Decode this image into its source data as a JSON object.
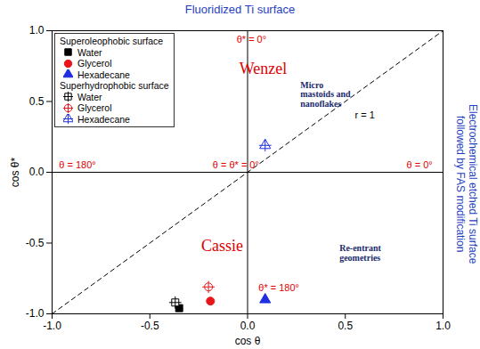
{
  "chart_data": {
    "type": "scatter",
    "title": "Fluoridized Ti surface",
    "side_title": "Electrochemical etched Ti surface\nfollowed by FAS modification",
    "x_label": "cos θ",
    "y_label": "cos θ*",
    "xlim": [
      -1,
      1
    ],
    "ylim": [
      -1,
      1
    ],
    "xticks": [
      {
        "value": -1,
        "label": "-1.0"
      },
      {
        "value": -0.5,
        "label": "-0.5"
      },
      {
        "value": 0,
        "label": "0.0"
      },
      {
        "value": 0.5,
        "label": "0.5"
      },
      {
        "value": 1,
        "label": "1.0"
      }
    ],
    "yticks": [
      {
        "value": -1,
        "label": "-1.0"
      },
      {
        "value": -0.5,
        "label": "-0.5"
      },
      {
        "value": 0,
        "label": "0.0"
      },
      {
        "value": 0.5,
        "label": "0.5"
      },
      {
        "value": 1,
        "label": "1.0"
      }
    ],
    "legend": "top-left",
    "series": [
      {
        "name": "Water",
        "group": "Superoleophobic surface",
        "color": "#000000",
        "marker": "square",
        "x": [
          -0.35
        ],
        "y": [
          -0.96
        ]
      },
      {
        "name": "Glycerol",
        "group": "Superoleophobic surface",
        "color": "#e8161b",
        "marker": "circle",
        "x": [
          -0.19
        ],
        "y": [
          -0.91
        ]
      },
      {
        "name": "Hexadecane",
        "group": "Superoleophobic surface",
        "color": "#1f2ee0",
        "marker": "triangle",
        "x": [
          0.09
        ],
        "y": [
          -0.9
        ]
      },
      {
        "name": "Water",
        "group": "Superhydrophobic surface",
        "color": "#000000",
        "marker": "crossed square",
        "x": [
          -0.37
        ],
        "y": [
          -0.92
        ]
      },
      {
        "name": "Glycerol",
        "group": "Superhydrophobic surface",
        "color": "#e8161b",
        "marker": "crossed circle",
        "x": [
          -0.2
        ],
        "y": [
          -0.81
        ]
      },
      {
        "name": "Hexadecane",
        "group": "Superhydrophobic surface",
        "color": "#1f2ee0",
        "marker": "crossed triangle",
        "x": [
          0.09
        ],
        "y": [
          0.19
        ]
      }
    ],
    "reference_lines": [
      {
        "x": [
          -1,
          1
        ],
        "y": [
          0,
          0
        ],
        "line_style": "solid",
        "color": "#000000"
      },
      {
        "x": [
          0,
          0
        ],
        "y": [
          -1,
          1
        ],
        "line_style": "solid",
        "color": "#000000"
      },
      {
        "x": [
          -1,
          1
        ],
        "y": [
          -1,
          1
        ],
        "line_style": "dashed",
        "color": "#000000"
      }
    ],
    "annotations": {
      "regimes": [
        {
          "text": "Wenzel",
          "x": 0.08,
          "y": 0.73,
          "color": "#e00000"
        },
        {
          "text": "Cassie",
          "x": -0.13,
          "y": -0.52,
          "color": "#e00000"
        }
      ],
      "angles": [
        {
          "text": "θ* = 0°",
          "x": 0.02,
          "y": 0.94,
          "color": "#e00000"
        },
        {
          "text": "θ = 180°",
          "x": -0.87,
          "y": 0.05,
          "color": "#e00000"
        },
        {
          "text": "θ = θ* = 0°",
          "x": -0.06,
          "y": 0.05,
          "color": "#e00000"
        },
        {
          "text": "θ = 0°",
          "x": 0.88,
          "y": 0.05,
          "color": "#e00000"
        },
        {
          "text": "θ* = 180°",
          "x": 0.16,
          "y": -0.82,
          "color": "#e00000"
        },
        {
          "text": "r = 1",
          "x": 0.6,
          "y": 0.4,
          "color": "#000000"
        }
      ],
      "insets": [
        {
          "text": "Micro\nmastoids and\nnanoflakes",
          "x": 0.27,
          "y": 0.55,
          "color": "#1a2a6c"
        },
        {
          "text": "Re-entrant\ngeometries",
          "x": 0.47,
          "y": -0.57,
          "color": "#1a2a6c"
        }
      ]
    }
  }
}
